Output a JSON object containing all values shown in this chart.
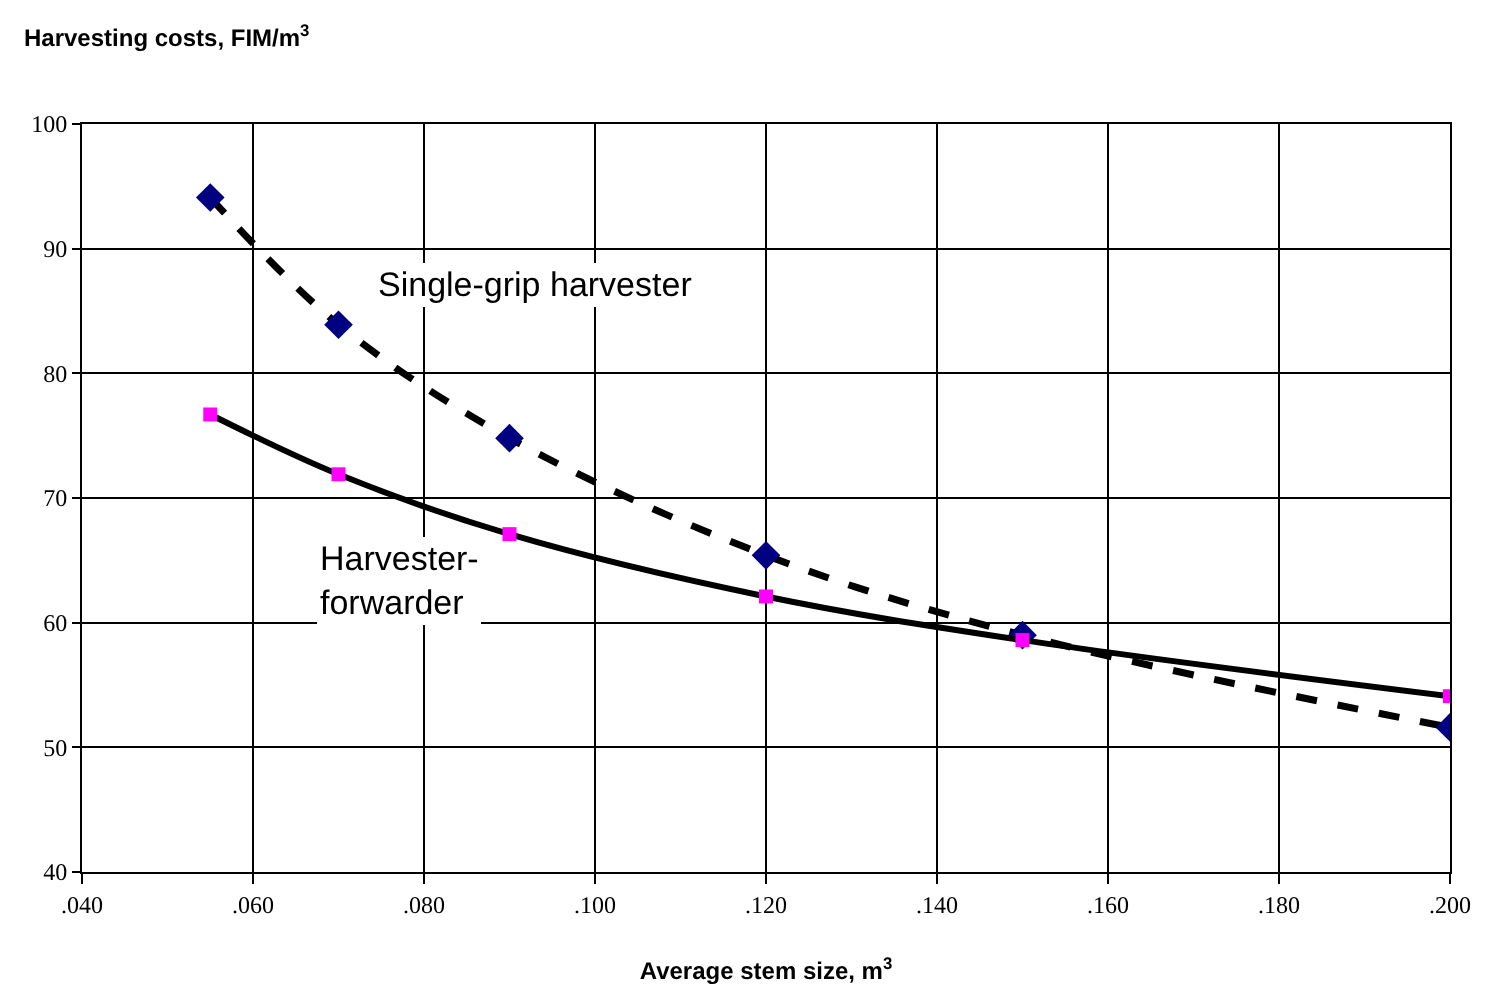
{
  "chart_data": {
    "type": "line",
    "ylabel": "Harvesting costs, FIM/m$^{3}$",
    "xlabel": "Average stem size, m$^{3}$",
    "x": [
      0.055,
      0.07,
      0.09,
      0.12,
      0.15,
      0.2
    ],
    "series": [
      {
        "name": "Single-grip harvester",
        "color": "#000000",
        "colors": [
          "#000080",
          "#000080",
          "#000080",
          "#000080",
          "#000080",
          "#000080"
        ],
        "marker": "diamond",
        "line_style": "dashed",
        "values": [
          94.1,
          83.9,
          74.8,
          65.4,
          59.0,
          51.6
        ]
      },
      {
        "name": "Harvester-\nforwarder",
        "color": "#000000",
        "colors": [
          "#ff00ff",
          "#ff00ff",
          "#ff00ff",
          "#ff00ff",
          "#ff00ff",
          "#ff00ff"
        ],
        "marker": "square",
        "line_style": "solid",
        "values": [
          76.7,
          71.9,
          67.1,
          62.1,
          58.6,
          54.1
        ]
      }
    ],
    "xlim": [
      0.04,
      0.2
    ],
    "xticks": [
      {
        "value": 0.04,
        "label": ".040"
      },
      {
        "value": 0.06,
        "label": ".060"
      },
      {
        "value": 0.08,
        "label": ".080"
      },
      {
        "value": 0.1,
        "label": ".100"
      },
      {
        "value": 0.12,
        "label": ".120"
      },
      {
        "value": 0.14,
        "label": ".140"
      },
      {
        "value": 0.16,
        "label": ".160"
      },
      {
        "value": 0.18,
        "label": ".180"
      },
      {
        "value": 0.2,
        "label": ".200"
      }
    ],
    "ylim": [
      40,
      100
    ],
    "yticks": [
      40,
      50,
      60,
      70,
      80,
      90,
      100
    ],
    "grid": true,
    "legend": false
  }
}
